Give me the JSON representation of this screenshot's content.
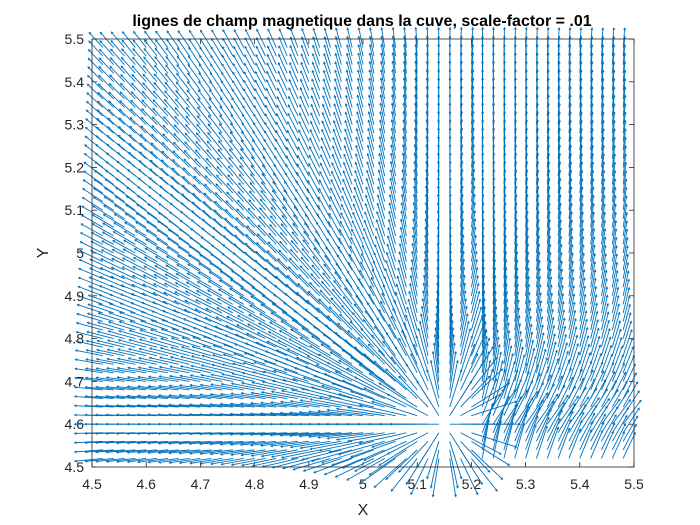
{
  "chart_data": {
    "type": "quiver",
    "title": "lignes de champ magnetique dans la cuve, scale-factor = .01",
    "xlabel": "X",
    "ylabel": "Y",
    "xlim": [
      4.5,
      5.5
    ],
    "ylim": [
      4.5,
      5.5
    ],
    "xticks": [
      "4.5",
      "4.6",
      "4.7",
      "4.8",
      "4.9",
      "5",
      "5.1",
      "5.2",
      "5.3",
      "5.4",
      "5.5"
    ],
    "yticks": [
      "4.5",
      "4.6",
      "4.7",
      "4.8",
      "4.9",
      "5",
      "5.1",
      "5.2",
      "5.3",
      "5.4",
      "5.5"
    ],
    "grid": false,
    "arrow_color": "#0072BD",
    "field_grid": {
      "x_start": 4.52,
      "x_end": 5.48,
      "x_step": 0.02,
      "y_start": 4.52,
      "y_end": 5.48,
      "y_step": 0.02,
      "source_x": 5.15,
      "source_y": 4.6
    }
  }
}
